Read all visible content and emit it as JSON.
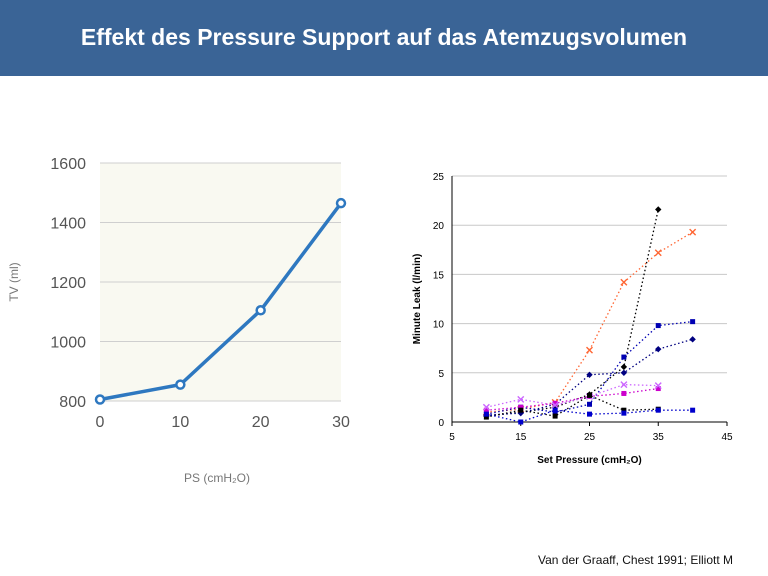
{
  "slide": {
    "title": "Effekt des Pressure Support auf das Atemzugsvolumen",
    "citation": "Van der Graaff, Chest 1991; Elliott M"
  },
  "colors": {
    "banner": "#3a6496",
    "left_line": "#2e78c0",
    "left_plot_bg": "#f9f9f1"
  },
  "chart_data": [
    {
      "type": "line",
      "xlabel": "PS (cmH₂O)",
      "ylabel": "TV (ml)",
      "x": [
        0,
        10,
        20,
        30
      ],
      "xticks": [
        0,
        10,
        20,
        30
      ],
      "yticks": [
        800,
        1000,
        1200,
        1400,
        1600
      ],
      "xlim": [
        0,
        30
      ],
      "ylim": [
        800,
        1600
      ],
      "grid": true,
      "series": [
        {
          "x": [
            0,
            10,
            20,
            30
          ],
          "values": [
            805,
            855,
            1105,
            1465
          ],
          "color": "#2e78c0"
        }
      ]
    },
    {
      "type": "line",
      "xlabel": "Set Pressure (cmH₂O)",
      "ylabel": "Minute Leak (l/min)",
      "xticks": [
        5,
        15,
        25,
        35,
        45
      ],
      "yticks": [
        0,
        5,
        10,
        15,
        20,
        25
      ],
      "xlim": [
        5,
        45
      ],
      "ylim": [
        0,
        25
      ],
      "grid": "horizontal",
      "series": [
        {
          "color": "#000000",
          "marker": "diamond",
          "x": [
            10,
            15,
            20,
            25,
            30,
            35
          ],
          "values": [
            0.6,
            1.0,
            1.5,
            2.8,
            5.6,
            21.6
          ]
        },
        {
          "color": "#ff6633",
          "marker": "x",
          "x": [
            10,
            15,
            20,
            25,
            30,
            35,
            40
          ],
          "values": [
            1.0,
            1.3,
            2.0,
            7.3,
            14.2,
            17.2,
            19.3
          ]
        },
        {
          "color": "#0000b3",
          "marker": "square",
          "x": [
            10,
            15,
            20,
            25,
            30,
            35,
            40
          ],
          "values": [
            0.8,
            1.5,
            1.0,
            1.8,
            6.6,
            9.8,
            10.2
          ]
        },
        {
          "color": "#000080",
          "marker": "diamond",
          "x": [
            10,
            15,
            20,
            25,
            30,
            35,
            40
          ],
          "values": [
            0.7,
            0.9,
            1.8,
            4.8,
            5.0,
            7.4,
            8.4
          ]
        },
        {
          "color": "#cc00cc",
          "marker": "square",
          "x": [
            10,
            15,
            20,
            25,
            30,
            35
          ],
          "values": [
            1.2,
            1.5,
            1.9,
            2.6,
            2.9,
            3.4
          ]
        },
        {
          "color": "#cc66ff",
          "marker": "x",
          "x": [
            10,
            15,
            20,
            25,
            30,
            35
          ],
          "values": [
            1.5,
            2.3,
            1.7,
            2.6,
            3.8,
            3.7
          ]
        },
        {
          "color": "#000000",
          "marker": "square",
          "x": [
            10,
            15,
            20,
            25,
            30,
            35
          ],
          "values": [
            0.5,
            1.2,
            0.6,
            2.7,
            1.2,
            1.3
          ]
        },
        {
          "color": "#0000cc",
          "marker": "square",
          "x": [
            10,
            15,
            20,
            25,
            30,
            35,
            40
          ],
          "values": [
            0.8,
            0.0,
            1.2,
            0.8,
            0.9,
            1.2,
            1.2
          ]
        }
      ]
    }
  ]
}
